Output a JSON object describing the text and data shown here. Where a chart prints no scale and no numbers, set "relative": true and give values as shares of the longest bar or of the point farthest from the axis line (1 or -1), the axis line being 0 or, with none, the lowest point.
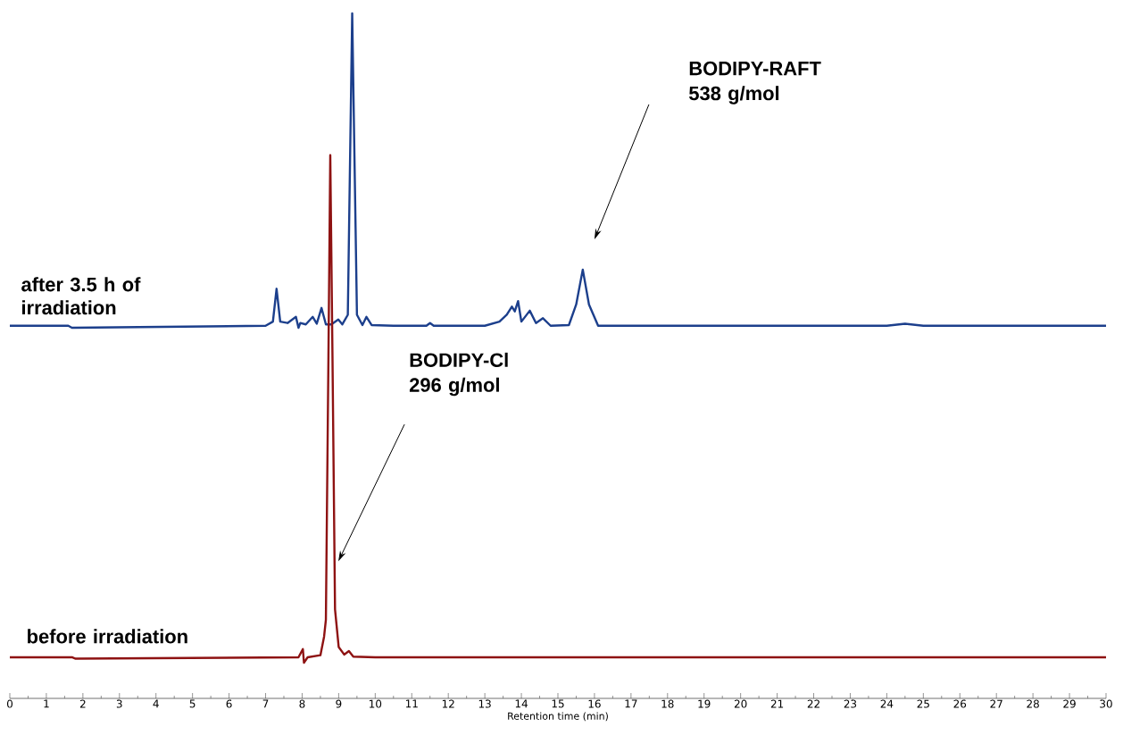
{
  "chart_data": {
    "type": "line",
    "relative": true,
    "xlabel": "Retention time (min)",
    "xlim": [
      0,
      30
    ],
    "xticks": [
      0,
      1,
      2,
      3,
      4,
      5,
      6,
      7,
      8,
      9,
      10,
      11,
      12,
      13,
      14,
      15,
      16,
      17,
      18,
      19,
      20,
      21,
      22,
      23,
      24,
      25,
      26,
      27,
      28,
      29,
      30
    ],
    "series": [
      {
        "name": "after 3.5 h of irradiation",
        "color": "#1c3f8c",
        "x": [
          0,
          1.6,
          1.7,
          7.0,
          7.2,
          7.3,
          7.4,
          7.6,
          7.83,
          7.9,
          7.95,
          8.1,
          8.29,
          8.4,
          8.53,
          8.65,
          8.8,
          8.99,
          9.1,
          9.25,
          9.37,
          9.5,
          9.65,
          9.76,
          9.9,
          10.5,
          11.4,
          11.5,
          11.6,
          13.0,
          13.4,
          13.6,
          13.74,
          13.82,
          13.91,
          14.0,
          14.23,
          14.4,
          14.59,
          14.8,
          15.3,
          15.5,
          15.68,
          15.85,
          16.1,
          24.0,
          24.5,
          25.0,
          30
        ],
        "values": [
          0.544,
          0.544,
          0.541,
          0.544,
          0.55,
          0.598,
          0.55,
          0.548,
          0.557,
          0.541,
          0.548,
          0.546,
          0.557,
          0.547,
          0.57,
          0.546,
          0.546,
          0.553,
          0.546,
          0.56,
          1.0,
          0.56,
          0.545,
          0.557,
          0.545,
          0.544,
          0.544,
          0.548,
          0.544,
          0.544,
          0.55,
          0.56,
          0.572,
          0.565,
          0.58,
          0.55,
          0.566,
          0.548,
          0.555,
          0.544,
          0.545,
          0.575,
          0.626,
          0.575,
          0.544,
          0.544,
          0.547,
          0.544,
          0.544
        ]
      },
      {
        "name": "before irradiation",
        "color": "#8e1212",
        "x": [
          0,
          1.7,
          1.8,
          7.9,
          8.02,
          8.05,
          8.15,
          8.5,
          8.6,
          8.65,
          8.72,
          8.77,
          8.83,
          8.9,
          9.0,
          9.15,
          9.28,
          9.4,
          10.0,
          30
        ],
        "values": [
          0.06,
          0.06,
          0.058,
          0.06,
          0.072,
          0.052,
          0.06,
          0.063,
          0.09,
          0.115,
          0.5,
          0.793,
          0.5,
          0.13,
          0.075,
          0.064,
          0.069,
          0.061,
          0.06,
          0.06
        ]
      }
    ],
    "annotations": [
      "BODIPY-RAFT 538 g/mol",
      "BODIPY-Cl 296 g/mol"
    ]
  }
}
